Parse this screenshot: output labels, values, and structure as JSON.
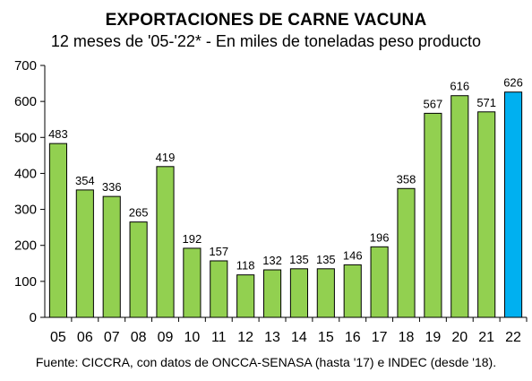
{
  "chart_data": {
    "type": "bar",
    "title": "EXPORTACIONES DE CARNE VACUNA",
    "subtitle": "12 meses de '05-'22* - En miles de toneladas peso producto",
    "source": "Fuente: CICCRA, con datos de ONCCA-SENASA (hasta '17) e INDEC (desde '18).",
    "categories": [
      "05",
      "06",
      "07",
      "08",
      "09",
      "10",
      "11",
      "12",
      "13",
      "14",
      "15",
      "16",
      "17",
      "18",
      "19",
      "20",
      "21",
      "22"
    ],
    "values": [
      483,
      354,
      336,
      265,
      419,
      192,
      157,
      118,
      132,
      135,
      135,
      146,
      196,
      358,
      567,
      616,
      571,
      626
    ],
    "ylim": [
      0,
      700
    ],
    "yticks": [
      0,
      100,
      200,
      300,
      400,
      500,
      600,
      700
    ],
    "grid": false,
    "colors": {
      "default": "#92d050",
      "highlight": "#00b0f0",
      "edge": "#000000"
    },
    "highlight_index": 17
  }
}
